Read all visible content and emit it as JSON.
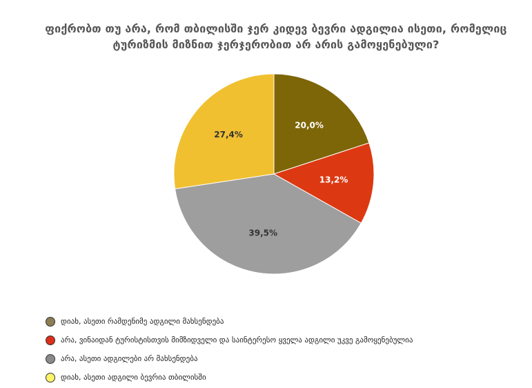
{
  "chart_data": {
    "type": "pie",
    "title": "ფიქრობთ თუ არა, რომ თბილისში ჯერ კიდევ ბევრი ადგილია ისეთი, რომელიც ტურიზმის მიზნით ჯერჯერობით არ არის გამოყენებული?",
    "title_lines": [
      "ფიქრობთ თუ არა, რომ თბილისში ჯერ კიდევ ბევრი ადგილია ისეთი, რომელიც",
      "ტურიზმის მიზნით ჯერჯერობით არ არის გამოყენებული?"
    ],
    "slices": [
      {
        "label": "დიახ, ასეთი რამდენიმე ადგილი მახსენდება",
        "value": 20.0,
        "value_label": "20,0%",
        "color": "#7d6608",
        "legend_color": "#8b7d54",
        "label_color": "#ffffff"
      },
      {
        "label": "არა, ვინაიდან ტურისტისთვის მიმზიდველი და საინტერესო ყველა ადგილი უკვე გამოყენებულია",
        "value": 13.2,
        "value_label": "13,2%",
        "color": "#dc3912",
        "legend_color": "#dc2f1a",
        "label_color": "#ffffff"
      },
      {
        "label": "არა, ასეთი ადგილები არ მახსენდება",
        "value": 39.5,
        "value_label": "39,5%",
        "color": "#9e9e9e",
        "legend_color": "#8a8a8a",
        "label_color": "#333333"
      },
      {
        "label": "დიახ, ასეთი ადგილი ბევრია თბილისში",
        "value": 27.4,
        "value_label": "27,4%",
        "color": "#f0c030",
        "legend_color": "#fff468",
        "label_color": "#333333"
      }
    ],
    "start_angle_deg": 0,
    "direction": "clockwise",
    "legend_position": "bottom-left"
  }
}
